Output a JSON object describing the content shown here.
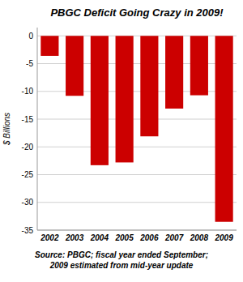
{
  "chart_data": {
    "type": "bar",
    "title": "PBGC Deficit Going Crazy in 2009!",
    "categories": [
      "2002",
      "2003",
      "2004",
      "2005",
      "2006",
      "2007",
      "2008",
      "2009"
    ],
    "values": [
      -3.6,
      -10.8,
      -23.3,
      -22.8,
      -18.1,
      -13.1,
      -10.7,
      -33.5
    ],
    "color": "#cc0000",
    "ylabel": "$ Billions",
    "ylim": [
      -35,
      1.5
    ],
    "yticks": [
      0,
      -5,
      -10,
      -15,
      -20,
      -25,
      -30,
      -35
    ],
    "grid": true,
    "annotation": "Source: PBGC; fiscal year ended September;\n2009 estimated from mid-year update"
  }
}
